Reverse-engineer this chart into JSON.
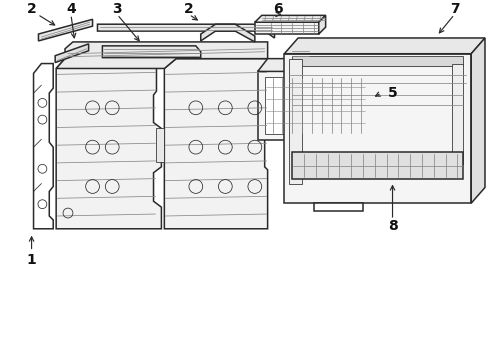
{
  "bg_color": "#ffffff",
  "lc": "#2a2a2a",
  "lc_light": "#888888",
  "lc_vlight": "#bbbbbb",
  "lw_main": 1.1,
  "lw_thin": 0.55,
  "lw_vt": 0.4,
  "label_fs": 10
}
